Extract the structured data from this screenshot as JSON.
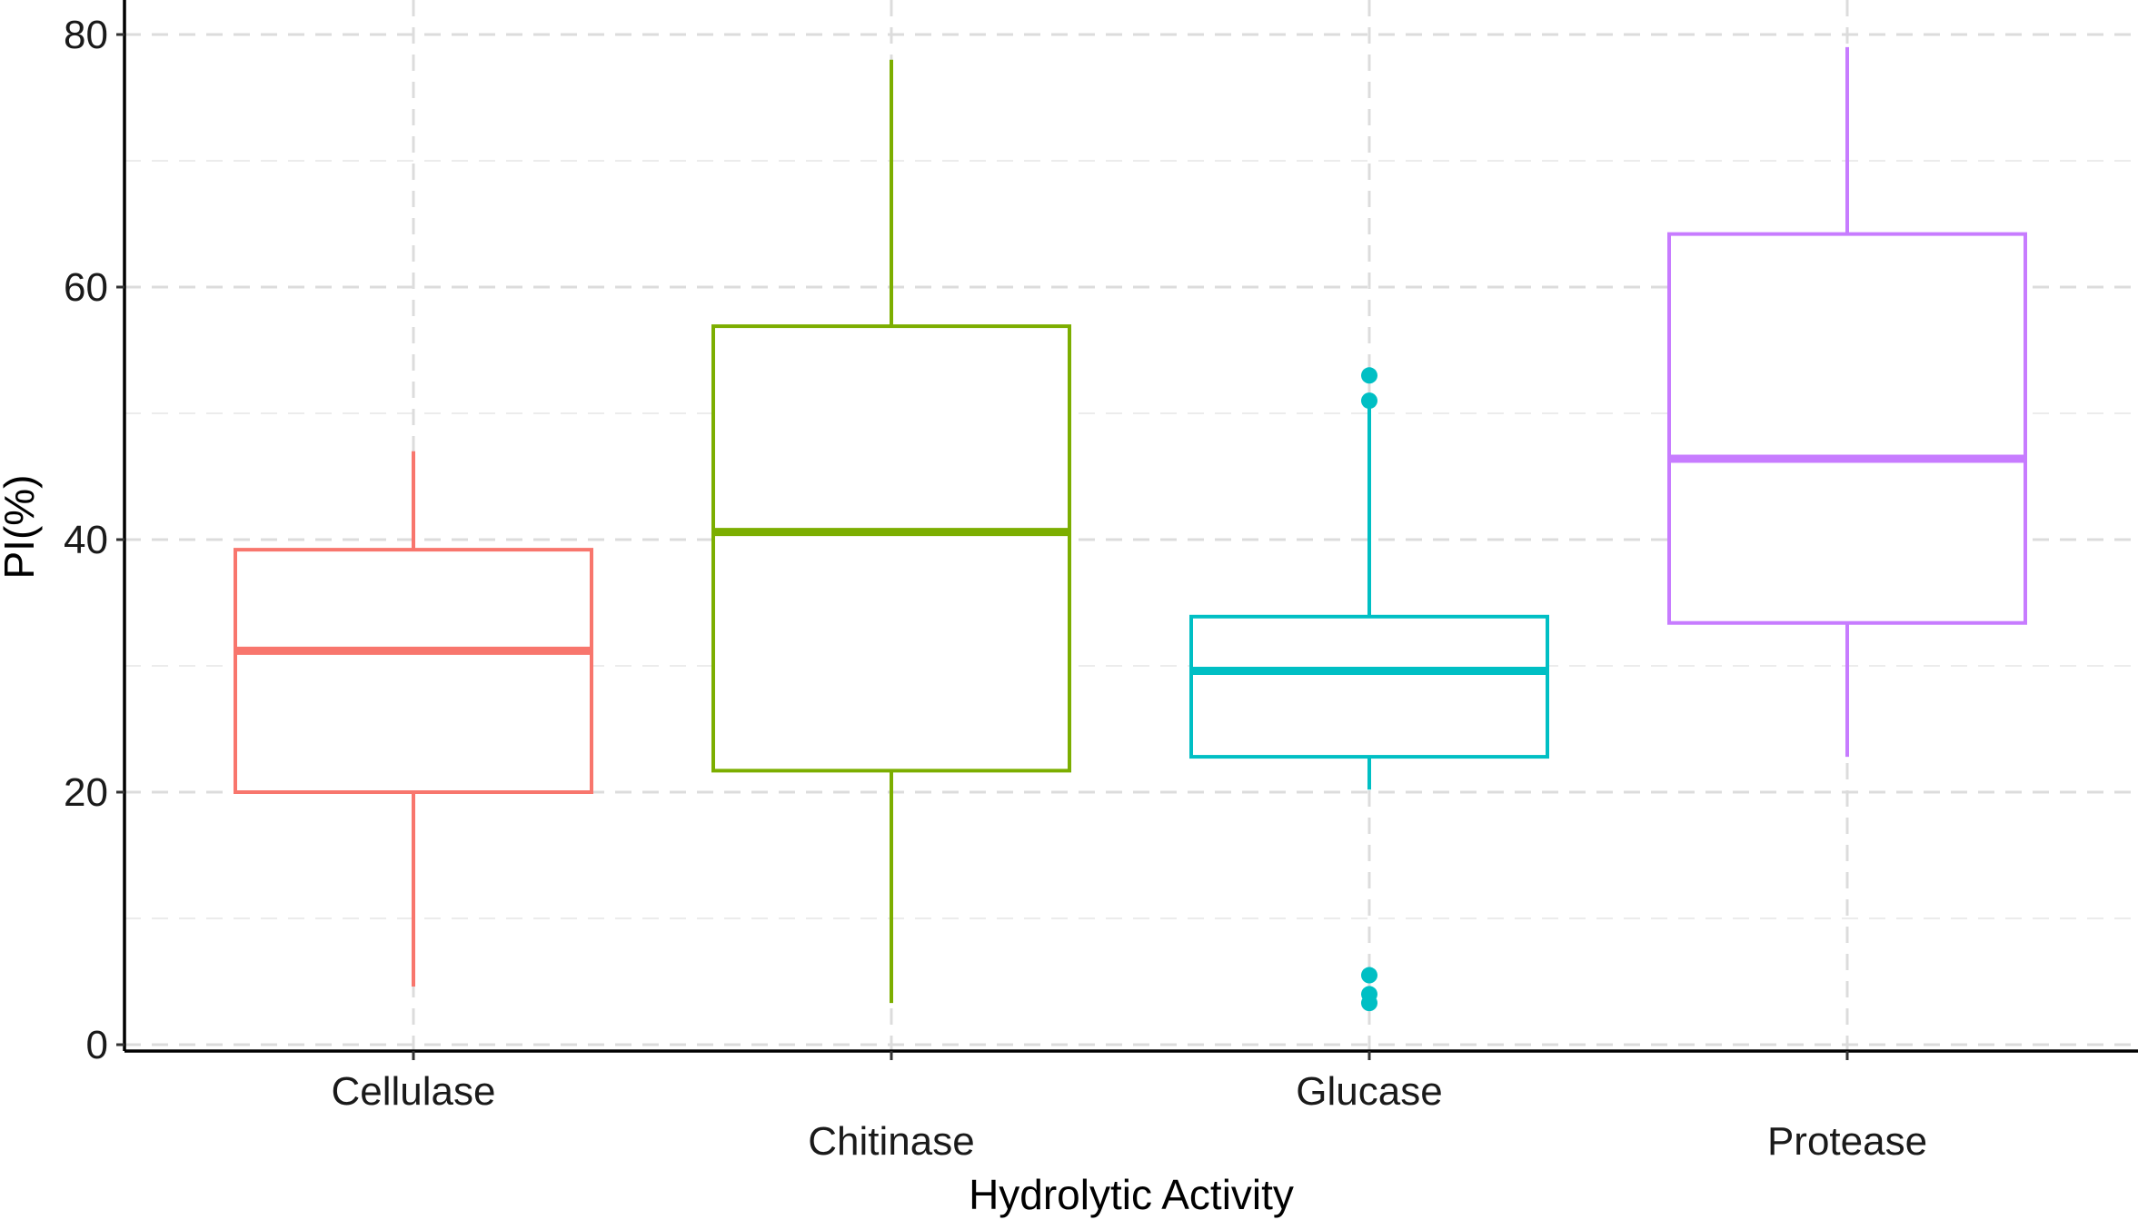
{
  "chart_data": {
    "type": "boxplot",
    "xlabel": "Hydrolytic Activity",
    "ylabel": "PI(%)",
    "ylim": [
      -0.5,
      82
    ],
    "yticks": [
      0,
      20,
      40,
      60,
      80
    ],
    "yminor": [
      10,
      30,
      50,
      70
    ],
    "grid": true,
    "categories": [
      {
        "name": "Cellulase",
        "color": "#F8766D",
        "whisker_low": 4.6,
        "q1": 20.0,
        "median": 31.2,
        "q3": 39.2,
        "whisker_high": 47.0,
        "outliers": [],
        "label_row": 0
      },
      {
        "name": "Chitinase",
        "color": "#7CAE00",
        "whisker_low": 3.3,
        "q1": 21.7,
        "median": 40.6,
        "q3": 56.9,
        "whisker_high": 78.0,
        "outliers": [],
        "label_row": 1
      },
      {
        "name": "Glucase",
        "color": "#00BFC4",
        "whisker_low": 20.2,
        "q1": 22.8,
        "median": 29.6,
        "q3": 33.9,
        "whisker_high": 51.0,
        "outliers": [
          53.0,
          51.0,
          5.5,
          4.0,
          3.3
        ],
        "label_row": 0
      },
      {
        "name": "Protease",
        "color": "#C77CFF",
        "whisker_low": 22.8,
        "q1": 33.4,
        "median": 46.4,
        "q3": 64.2,
        "whisker_high": 79.0,
        "outliers": [],
        "label_row": 1
      }
    ]
  }
}
